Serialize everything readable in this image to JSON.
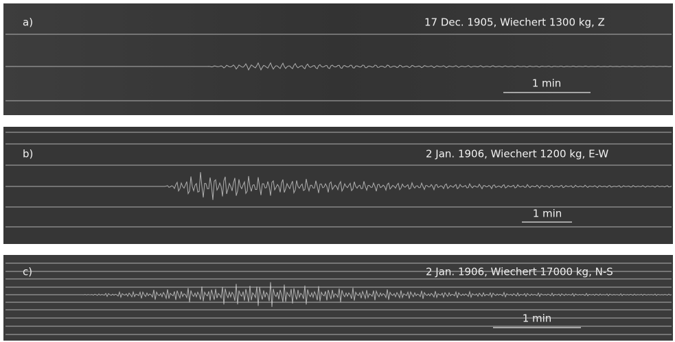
{
  "panels": [
    {
      "label": "a)",
      "caption": "17 Dec. 1905, Wiechert 1300 kg, Z",
      "scale_label": "1 min"
    },
    {
      "label": "b)",
      "caption": "2 Jan. 1906, Wiechert 1200 kg, E-W",
      "scale_label": "1 min"
    },
    {
      "label": "c)",
      "caption": "2 Jan. 1906, Wiechert 17000 kg, N-S",
      "scale_label": "1 min"
    }
  ]
}
